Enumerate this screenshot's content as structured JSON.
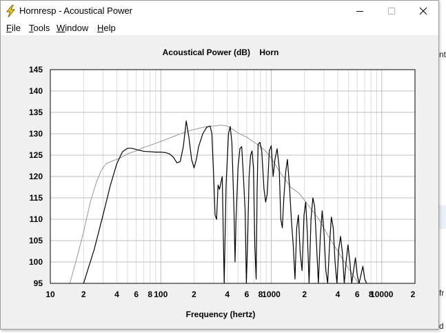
{
  "window": {
    "title": "Hornresp - Acoustical Power",
    "buttons": [
      "minimize",
      "maximize",
      "close"
    ]
  },
  "menu": [
    {
      "label": "File",
      "key": "F",
      "rest": "ile"
    },
    {
      "label": "Tools",
      "key": "T",
      "rest": "ools"
    },
    {
      "label": "Window",
      "key": "W",
      "rest": "indow"
    },
    {
      "label": "Help",
      "key": "H",
      "rest": "elp"
    }
  ],
  "background": {
    "fragments": [
      "nt",
      "fr",
      "d"
    ]
  },
  "chart_data": {
    "type": "line",
    "title": "Acoustical Power (dB)    Horn",
    "xlabel": "Frequency (hertz)",
    "ylabel": "",
    "xscale": "log",
    "xlim": [
      10,
      20000
    ],
    "ylim": [
      95,
      145
    ],
    "y_ticks": [
      95,
      100,
      105,
      110,
      115,
      120,
      125,
      130,
      135,
      140,
      145
    ],
    "x_tick_labels": [
      {
        "x": 10,
        "label": "10"
      },
      {
        "x": 20,
        "label": "2"
      },
      {
        "x": 40,
        "label": "4"
      },
      {
        "x": 60,
        "label": "6"
      },
      {
        "x": 80,
        "label": "8"
      },
      {
        "x": 100,
        "label": "100"
      },
      {
        "x": 200,
        "label": "2"
      },
      {
        "x": 400,
        "label": "4"
      },
      {
        "x": 600,
        "label": "6"
      },
      {
        "x": 800,
        "label": "8"
      },
      {
        "x": 1000,
        "label": "1000"
      },
      {
        "x": 2000,
        "label": "2"
      },
      {
        "x": 4000,
        "label": "4"
      },
      {
        "x": 6000,
        "label": "6"
      },
      {
        "x": 8000,
        "label": "8"
      },
      {
        "x": 10000,
        "label": "10000"
      },
      {
        "x": 20000,
        "label": "2"
      }
    ],
    "grid": true,
    "series": [
      {
        "color": "#000000",
        "points": [
          [
            20,
            95
          ],
          [
            25,
            103
          ],
          [
            30,
            111
          ],
          [
            35,
            118
          ],
          [
            40,
            123
          ],
          [
            45,
            125.8
          ],
          [
            50,
            126.6
          ],
          [
            55,
            126.6
          ],
          [
            60,
            126.3
          ],
          [
            70,
            125.9
          ],
          [
            80,
            125.8
          ],
          [
            90,
            125.7
          ],
          [
            100,
            125.7
          ],
          [
            110,
            125.6
          ],
          [
            120,
            125.3
          ],
          [
            130,
            124.5
          ],
          [
            140,
            123.2
          ],
          [
            150,
            123.5
          ],
          [
            160,
            127
          ],
          [
            170,
            133
          ],
          [
            180,
            129
          ],
          [
            190,
            124
          ],
          [
            200,
            122
          ],
          [
            210,
            124
          ],
          [
            220,
            127
          ],
          [
            240,
            130
          ],
          [
            260,
            131.5
          ],
          [
            280,
            131.8
          ],
          [
            290,
            130
          ],
          [
            300,
            121
          ],
          [
            310,
            111
          ],
          [
            320,
            110
          ],
          [
            330,
            118
          ],
          [
            340,
            117
          ],
          [
            360,
            120
          ],
          [
            375,
            95
          ],
          [
            390,
            118
          ],
          [
            410,
            130
          ],
          [
            425,
            131.7
          ],
          [
            440,
            128
          ],
          [
            460,
            112
          ],
          [
            470,
            100
          ],
          [
            480,
            110
          ],
          [
            500,
            122
          ],
          [
            520,
            126.5
          ],
          [
            540,
            127
          ],
          [
            560,
            120
          ],
          [
            580,
            112
          ],
          [
            595,
            95
          ],
          [
            610,
            104
          ],
          [
            630,
            120
          ],
          [
            650,
            125
          ],
          [
            670,
            126
          ],
          [
            690,
            122
          ],
          [
            710,
            104
          ],
          [
            730,
            96
          ],
          [
            745,
            117
          ],
          [
            760,
            127.5
          ],
          [
            790,
            128
          ],
          [
            820,
            126
          ],
          [
            860,
            117
          ],
          [
            890,
            114
          ],
          [
            920,
            116
          ],
          [
            960,
            126
          ],
          [
            1000,
            127.2
          ],
          [
            1040,
            120
          ],
          [
            1080,
            124
          ],
          [
            1130,
            126.5
          ],
          [
            1180,
            122
          ],
          [
            1220,
            110
          ],
          [
            1260,
            108
          ],
          [
            1300,
            115
          ],
          [
            1350,
            121
          ],
          [
            1400,
            124
          ],
          [
            1460,
            118
          ],
          [
            1520,
            110
          ],
          [
            1580,
            104
          ],
          [
            1640,
            96
          ],
          [
            1700,
            108
          ],
          [
            1760,
            111
          ],
          [
            1830,
            102
          ],
          [
            1900,
            98
          ],
          [
            1980,
            111
          ],
          [
            2050,
            114
          ],
          [
            2120,
            107
          ],
          [
            2200,
            95
          ],
          [
            2290,
            110
          ],
          [
            2380,
            115
          ],
          [
            2470,
            113
          ],
          [
            2570,
            104
          ],
          [
            2670,
            95
          ],
          [
            2780,
            106
          ],
          [
            2890,
            112
          ],
          [
            3000,
            107
          ],
          [
            3120,
            98
          ],
          [
            3240,
            95
          ],
          [
            3370,
            104
          ],
          [
            3500,
            110.5
          ],
          [
            3640,
            108
          ],
          [
            3780,
            100
          ],
          [
            3930,
            95
          ],
          [
            4080,
            103
          ],
          [
            4240,
            106
          ],
          [
            4410,
            102
          ],
          [
            4580,
            95
          ],
          [
            4760,
            100
          ],
          [
            4950,
            104
          ],
          [
            5150,
            100
          ],
          [
            5350,
            95
          ],
          [
            5560,
            98
          ],
          [
            5780,
            101
          ],
          [
            6000,
            97
          ],
          [
            6240,
            95
          ],
          [
            6490,
            97
          ],
          [
            6750,
            99
          ],
          [
            7020,
            96
          ],
          [
            7300,
            95
          ]
        ]
      },
      {
        "color": "#8c8c8c",
        "points": [
          [
            15,
            95
          ],
          [
            17,
            100
          ],
          [
            20,
            107
          ],
          [
            23,
            114
          ],
          [
            26,
            118.5
          ],
          [
            29,
            121.5
          ],
          [
            32,
            123
          ],
          [
            36,
            123.6
          ],
          [
            40,
            124
          ],
          [
            45,
            124.6
          ],
          [
            50,
            125.3
          ],
          [
            60,
            126
          ],
          [
            70,
            126.8
          ],
          [
            80,
            127.3
          ],
          [
            100,
            128.2
          ],
          [
            120,
            129
          ],
          [
            150,
            130
          ],
          [
            200,
            131
          ],
          [
            250,
            131.6
          ],
          [
            300,
            131.8
          ],
          [
            350,
            132
          ],
          [
            400,
            131.8
          ],
          [
            450,
            131
          ],
          [
            500,
            130.2
          ],
          [
            600,
            129.2
          ],
          [
            700,
            128
          ],
          [
            800,
            127
          ],
          [
            900,
            125.8
          ],
          [
            1000,
            124.3
          ],
          [
            1200,
            121
          ],
          [
            1500,
            117.5
          ],
          [
            1800,
            116
          ],
          [
            2200,
            113
          ],
          [
            2700,
            110
          ],
          [
            3300,
            106
          ],
          [
            4000,
            102.5
          ],
          [
            5000,
            98.5
          ],
          [
            6000,
            95.5
          ],
          [
            6500,
            94
          ]
        ]
      }
    ]
  }
}
